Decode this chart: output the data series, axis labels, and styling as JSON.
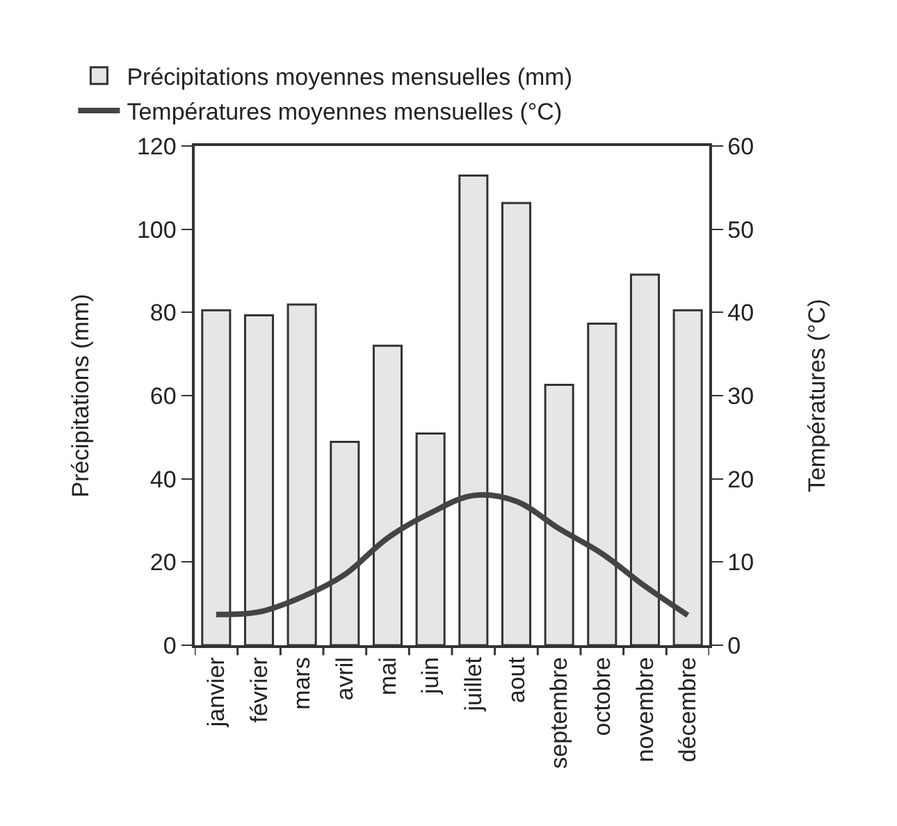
{
  "chart_data": {
    "type": "bar",
    "categories": [
      "janvier",
      "février",
      "mars",
      "avril",
      "mai",
      "juin",
      "juillet",
      "aout",
      "septembre",
      "octobre",
      "novembre",
      "décembre"
    ],
    "series": [
      {
        "name": "Précipitations moyennes mensuelles (mm)",
        "color": "#e6e6e6",
        "values": [
          80.5,
          79.3,
          81.9,
          48.9,
          72,
          50.9,
          112.9,
          106.3,
          62.6,
          77.3,
          89.1,
          80.5
        ]
      },
      {
        "name": "Températures moyennes mensuelles (°C)",
        "type": "line",
        "axis": "y2",
        "color": "#444444",
        "values": [
          3.7,
          4,
          5.8,
          8.5,
          12.9,
          15.9,
          18,
          17.3,
          14,
          11,
          7.1,
          3.6
        ]
      }
    ],
    "ylabel": "Précipitations (mm)",
    "y2label": "Températures (°C)",
    "ylim": [
      0,
      120
    ],
    "yticks": [
      0,
      20,
      40,
      60,
      80,
      100,
      120
    ],
    "y2lim": [
      0,
      60
    ],
    "y2ticks": [
      0,
      10,
      20,
      30,
      40,
      50,
      60
    ],
    "legend": "top left"
  }
}
